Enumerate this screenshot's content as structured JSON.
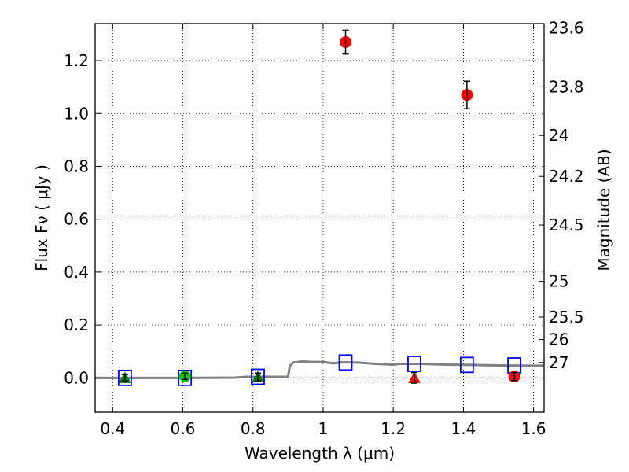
{
  "chart_data": {
    "type": "scatter",
    "xlabel": "Wavelength  λ (μm)",
    "ylabel": "Flux  Fν  ( μJy )",
    "ylabel_right": "Magnitude (AB)",
    "xlim": [
      0.35,
      1.63
    ],
    "ylim": [
      -0.13,
      1.34
    ],
    "x_ticks": [
      0.4,
      0.6,
      0.8,
      1.0,
      1.2,
      1.4,
      1.6
    ],
    "x_tick_labels": [
      "0.4",
      "0.6",
      "0.8",
      "1",
      "1.2",
      "1.4",
      "1.6"
    ],
    "y_ticks": [
      0.0,
      0.2,
      0.4,
      0.6,
      0.8,
      1.0,
      1.2
    ],
    "y_tick_labels": [
      "0.0",
      "0.2",
      "0.4",
      "0.6",
      "0.8",
      "1.0",
      "1.2"
    ],
    "right_ticks": [
      {
        "label": "23.6",
        "flux": 1.324
      },
      {
        "label": "23.8",
        "flux": 1.101
      },
      {
        "label": "24",
        "flux": 0.917
      },
      {
        "label": "24.2",
        "flux": 0.762
      },
      {
        "label": "24.5",
        "flux": 0.578
      },
      {
        "label": "25",
        "flux": 0.365
      },
      {
        "label": "25.5",
        "flux": 0.23
      },
      {
        "label": "26",
        "flux": 0.145
      },
      {
        "label": "27",
        "flux": 0.058
      }
    ],
    "grid": true,
    "model_curve": {
      "color": "#808080",
      "points": [
        [
          0.35,
          0.0
        ],
        [
          0.6,
          0.0
        ],
        [
          0.75,
          0.001
        ],
        [
          0.78,
          0.004
        ],
        [
          0.85,
          0.004
        ],
        [
          0.9,
          0.004
        ],
        [
          0.905,
          0.045
        ],
        [
          0.915,
          0.058
        ],
        [
          0.94,
          0.062
        ],
        [
          0.97,
          0.06
        ],
        [
          1.0,
          0.06
        ],
        [
          1.03,
          0.055
        ],
        [
          1.05,
          0.059
        ],
        [
          1.1,
          0.058
        ],
        [
          1.15,
          0.053
        ],
        [
          1.2,
          0.05
        ],
        [
          1.22,
          0.053
        ],
        [
          1.28,
          0.053
        ],
        [
          1.35,
          0.05
        ],
        [
          1.42,
          0.049
        ],
        [
          1.5,
          0.047
        ],
        [
          1.6,
          0.046
        ],
        [
          1.63,
          0.046
        ]
      ]
    },
    "model_points": {
      "color": "#0000ff",
      "marker": "open-square",
      "x": [
        0.435,
        0.606,
        0.814,
        1.064,
        1.26,
        1.41,
        1.545
      ],
      "y": [
        0.0,
        0.0,
        0.004,
        0.058,
        0.053,
        0.049,
        0.047
      ]
    },
    "series": [
      {
        "color": "#008000",
        "marker": "triangle",
        "x": [
          0.435,
          0.814
        ],
        "y": [
          0.0,
          0.003
        ],
        "yerr": [
          0.012,
          0.015
        ]
      },
      {
        "color": "#00cc00",
        "marker": "circle",
        "x": [
          0.606
        ],
        "y": [
          0.006
        ],
        "yerr": [
          0.012
        ]
      },
      {
        "color": "#ff0000",
        "marker": "circle",
        "x": [
          1.064,
          1.41,
          1.545
        ],
        "y": [
          1.27,
          1.07,
          0.005
        ],
        "yerr": [
          0.045,
          0.052,
          0.015
        ]
      },
      {
        "color": "#ff0000",
        "marker": "triangle",
        "x": [
          1.26
        ],
        "y": [
          0.0
        ],
        "yerr": [
          0.02
        ]
      }
    ],
    "colors": {
      "zero_line": "#000000",
      "grid": "#000000"
    }
  }
}
